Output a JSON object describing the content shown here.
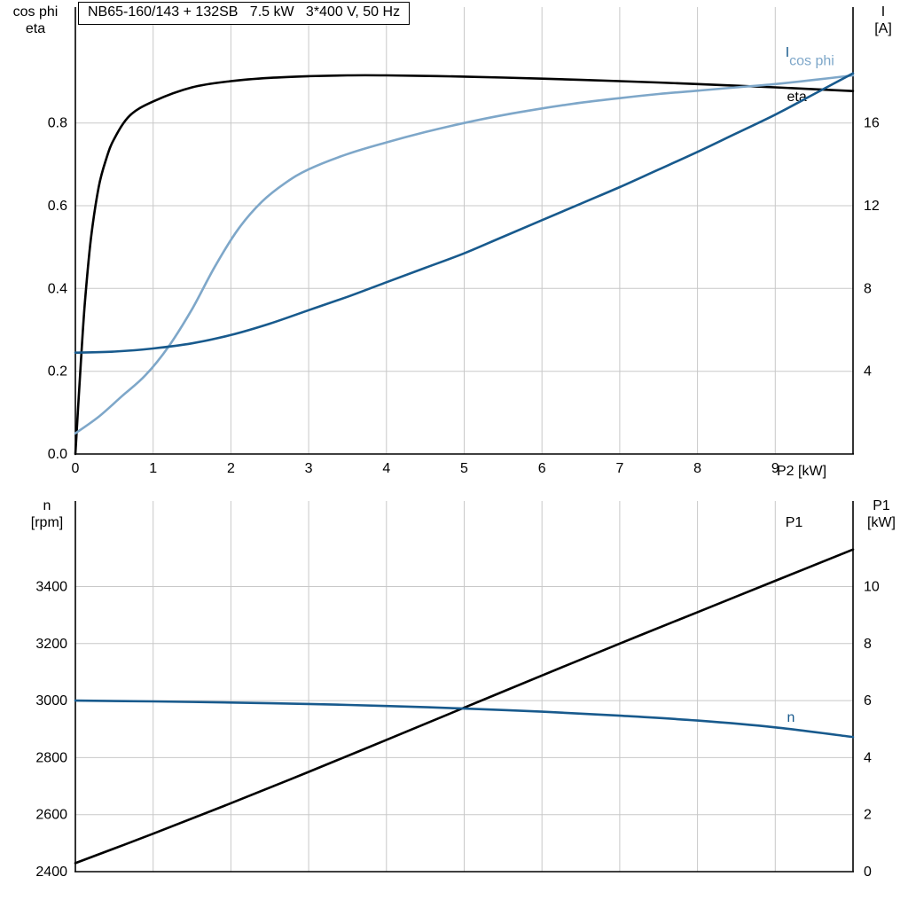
{
  "colors": {
    "grid": "#c8c8c8",
    "axis": "#000000",
    "black_series": "#000000",
    "dark_blue_series": "#185a8d",
    "light_blue_series": "#7ea7c9"
  },
  "chart_data": [
    {
      "id": "top",
      "type": "line",
      "title": "NB65-160/143 + 132SB   7.5 kW   3*400 V, 50 Hz",
      "xlabel": "P2 [kW]",
      "ylabel_left_lines": [
        "cos phi",
        "eta"
      ],
      "ylabel_right_lines": [
        "I",
        "[A]"
      ],
      "grid": true,
      "xlim": [
        0,
        10
      ],
      "ylim_left": [
        0,
        1.08
      ],
      "ylim_right": [
        0,
        21.6
      ],
      "grid_x": [
        1,
        2,
        3,
        4,
        5,
        6,
        7,
        8,
        9
      ],
      "grid_y_left": [
        0.2,
        0.4,
        0.6,
        0.8
      ],
      "x_ticks": [
        {
          "v": 0,
          "label": "0"
        },
        {
          "v": 1,
          "label": "1"
        },
        {
          "v": 2,
          "label": "2"
        },
        {
          "v": 3,
          "label": "3"
        },
        {
          "v": 4,
          "label": "4"
        },
        {
          "v": 5,
          "label": "5"
        },
        {
          "v": 6,
          "label": "6"
        },
        {
          "v": 7,
          "label": "7"
        },
        {
          "v": 8,
          "label": "8"
        },
        {
          "v": 9,
          "label": "9"
        }
      ],
      "y_ticks_left": [
        {
          "v": 0.0,
          "label": "0.0"
        },
        {
          "v": 0.2,
          "label": "0.2"
        },
        {
          "v": 0.4,
          "label": "0.4"
        },
        {
          "v": 0.6,
          "label": "0.6"
        },
        {
          "v": 0.8,
          "label": "0.8"
        }
      ],
      "y_ticks_right": [
        {
          "v": 4,
          "label": "4"
        },
        {
          "v": 8,
          "label": "8"
        },
        {
          "v": 12,
          "label": "12"
        },
        {
          "v": 16,
          "label": "16"
        }
      ],
      "series": [
        {
          "key": "eta",
          "name": "eta",
          "axis": "left",
          "color": "#000000",
          "x": [
            0,
            0.06,
            0.12,
            0.2,
            0.3,
            0.4,
            0.5,
            0.7,
            1,
            1.5,
            2,
            2.5,
            3,
            3.5,
            4,
            5,
            6,
            7,
            8,
            9,
            10
          ],
          "values": [
            0,
            0.19,
            0.36,
            0.52,
            0.645,
            0.715,
            0.762,
            0.818,
            0.852,
            0.886,
            0.901,
            0.909,
            0.913,
            0.915,
            0.915,
            0.912,
            0.907,
            0.901,
            0.894,
            0.886,
            0.877
          ],
          "label": {
            "x": 9.15,
            "y": 0.853
          }
        },
        {
          "key": "cos-phi",
          "name": "cos phi",
          "axis": "left",
          "color": "#7ea7c9",
          "x": [
            0,
            0.3,
            0.6,
            0.9,
            1.2,
            1.5,
            1.8,
            2.1,
            2.4,
            2.7,
            3,
            3.5,
            4,
            4.5,
            5,
            5.5,
            6,
            6.5,
            7,
            7.5,
            8,
            8.5,
            9,
            9.5,
            10
          ],
          "values": [
            0.05,
            0.09,
            0.14,
            0.19,
            0.26,
            0.35,
            0.455,
            0.545,
            0.61,
            0.655,
            0.688,
            0.725,
            0.753,
            0.778,
            0.8,
            0.819,
            0.835,
            0.849,
            0.86,
            0.87,
            0.878,
            0.886,
            0.894,
            0.904,
            0.915
          ],
          "label": {
            "x": 9.18,
            "y": 0.94
          }
        },
        {
          "key": "current",
          "name": "I",
          "axis": "right",
          "color": "#185a8d",
          "x": [
            0,
            0.5,
            1,
            1.5,
            2,
            2.5,
            3,
            3.5,
            4,
            4.5,
            5,
            5.5,
            6,
            6.5,
            7,
            7.5,
            8,
            8.5,
            9,
            9.5,
            10
          ],
          "values": [
            4.9,
            4.95,
            5.1,
            5.35,
            5.75,
            6.3,
            6.95,
            7.6,
            8.3,
            9.0,
            9.7,
            10.5,
            11.3,
            12.1,
            12.9,
            13.75,
            14.6,
            15.5,
            16.4,
            17.4,
            18.4
          ],
          "label": {
            "x": 9.13,
            "y": 19.2
          }
        }
      ]
    },
    {
      "id": "bottom",
      "type": "line",
      "title": "",
      "xlabel": "",
      "ylabel_left_lines": [
        "n",
        "[rpm]"
      ],
      "ylabel_right_lines": [
        "P1",
        "[kW]"
      ],
      "grid": true,
      "xlim": [
        0,
        10
      ],
      "ylim_left": [
        2400,
        3700
      ],
      "ylim_right": [
        0,
        13
      ],
      "grid_x": [
        1,
        2,
        3,
        4,
        5,
        6,
        7,
        8,
        9
      ],
      "grid_y_left": [
        2600,
        2800,
        3000,
        3200,
        3400
      ],
      "x_ticks": [],
      "y_ticks_left": [
        {
          "v": 2400,
          "label": "2400"
        },
        {
          "v": 2600,
          "label": "2600"
        },
        {
          "v": 2800,
          "label": "2800"
        },
        {
          "v": 3000,
          "label": "3000"
        },
        {
          "v": 3200,
          "label": "3200"
        },
        {
          "v": 3400,
          "label": "3400"
        }
      ],
      "y_ticks_right": [
        {
          "v": 0,
          "label": "0"
        },
        {
          "v": 2,
          "label": "2"
        },
        {
          "v": 4,
          "label": "4"
        },
        {
          "v": 6,
          "label": "6"
        },
        {
          "v": 8,
          "label": "8"
        },
        {
          "v": 10,
          "label": "10"
        }
      ],
      "series": [
        {
          "key": "p1-power",
          "name": "P1",
          "axis": "right",
          "color": "#000000",
          "x": [
            0,
            1,
            2,
            3,
            4,
            5,
            6,
            7,
            8,
            9,
            10
          ],
          "values": [
            0.3,
            1.33,
            2.4,
            3.5,
            4.62,
            5.75,
            6.88,
            8.0,
            9.1,
            10.2,
            11.3
          ],
          "label": {
            "x": 9.13,
            "y": 12.1
          }
        },
        {
          "key": "speed",
          "name": "n",
          "axis": "left",
          "color": "#185a8d",
          "x": [
            0,
            1,
            2,
            3,
            4,
            5,
            6,
            7,
            8,
            9,
            10
          ],
          "values": [
            3000,
            2997,
            2993,
            2988,
            2981,
            2972,
            2961,
            2947,
            2930,
            2906,
            2872
          ],
          "label": {
            "x": 9.15,
            "y": 2925
          }
        }
      ]
    }
  ]
}
